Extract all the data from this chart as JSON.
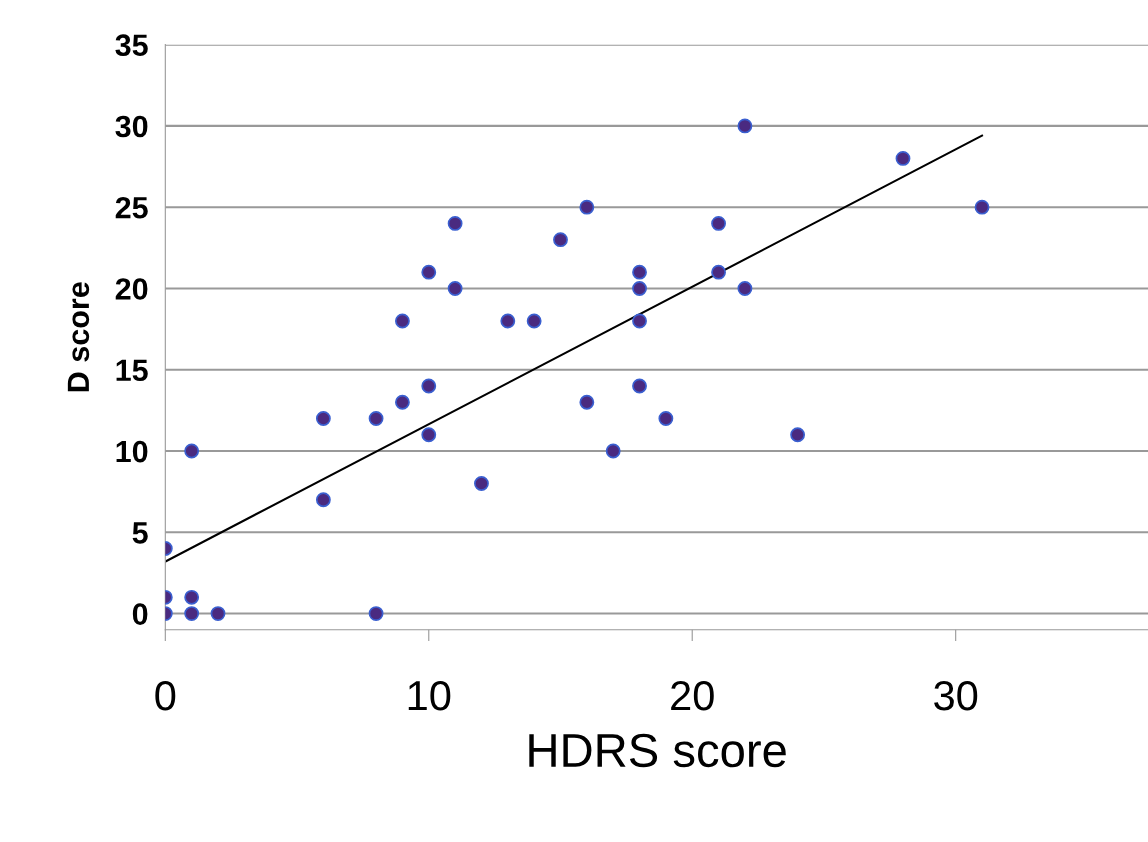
{
  "chart_data": {
    "type": "scatter",
    "xlabel": "HDRS score",
    "ylabel": "D score",
    "xlim": [
      0,
      37.3
    ],
    "ylim": [
      -1,
      35
    ],
    "xticks": [
      0,
      10,
      20,
      30
    ],
    "yticks": [
      0,
      5,
      10,
      15,
      20,
      25,
      30,
      35
    ],
    "grid": "y",
    "series": [
      {
        "marker": "circle",
        "color": "#4a2a80",
        "x": [
          0,
          0,
          0,
          1,
          1,
          1,
          2,
          6,
          6,
          8,
          8,
          9,
          9,
          10,
          10,
          10,
          11,
          11,
          12,
          13,
          14,
          15,
          16,
          16,
          17,
          18,
          18,
          18,
          18,
          19,
          21,
          21,
          22,
          22,
          24,
          28,
          31
        ],
        "values": [
          4,
          1,
          0,
          10,
          1,
          0,
          0,
          12,
          7,
          12,
          0,
          18,
          13,
          21,
          14,
          11,
          24,
          20,
          8,
          18,
          18,
          23,
          25,
          13,
          10,
          21,
          20,
          18,
          14,
          12,
          24,
          21,
          30,
          20,
          11,
          28,
          25
        ]
      },
      {
        "type": "line",
        "marker": "none",
        "color": "#000000",
        "x": [
          0,
          31
        ],
        "values": [
          3.2,
          29.4
        ]
      }
    ]
  }
}
